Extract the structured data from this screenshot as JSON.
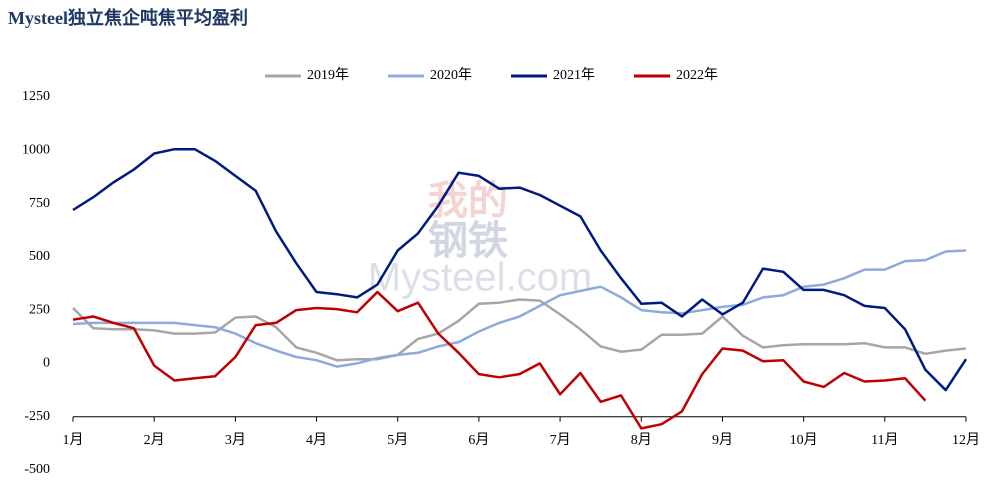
{
  "chart_data": {
    "type": "line",
    "title": "Mysteel独立焦企吨焦平均盈利",
    "watermark": [
      "我的",
      "钢铁",
      "Mysteel.com"
    ],
    "x": [
      1,
      1.25,
      1.5,
      1.75,
      2,
      2.25,
      2.5,
      2.75,
      3,
      3.25,
      3.5,
      3.75,
      4,
      4.25,
      4.5,
      4.75,
      5,
      5.25,
      5.5,
      5.75,
      6,
      6.25,
      6.5,
      6.75,
      7,
      7.25,
      7.5,
      7.75,
      8,
      8.25,
      8.5,
      8.75,
      9,
      9.25,
      9.5,
      9.75,
      10,
      10.25,
      10.5,
      10.75,
      11,
      11.25,
      11.5,
      11.75,
      12
    ],
    "series": [
      {
        "name": "2019年",
        "color": "#a6a6a6",
        "values": [
          260,
          165,
          160,
          160,
          155,
          140,
          140,
          145,
          215,
          220,
          170,
          75,
          50,
          15,
          20,
          20,
          40,
          115,
          140,
          200,
          280,
          285,
          300,
          295,
          230,
          160,
          80,
          55,
          65,
          135,
          135,
          140,
          220,
          130,
          75,
          85,
          90,
          90,
          90,
          95,
          75,
          75,
          45,
          60,
          70
        ]
      },
      {
        "name": "2020年",
        "color": "#8eaadb",
        "values": [
          185,
          190,
          190,
          190,
          190,
          190,
          180,
          170,
          140,
          95,
          60,
          30,
          15,
          -15,
          0,
          25,
          40,
          50,
          80,
          100,
          150,
          190,
          220,
          270,
          320,
          340,
          360,
          310,
          250,
          240,
          235,
          250,
          265,
          275,
          310,
          320,
          360,
          370,
          400,
          440,
          440,
          480,
          485,
          525,
          530
        ]
      },
      {
        "name": "2021年",
        "color": "#001a80",
        "values": [
          720,
          780,
          850,
          910,
          985,
          1005,
          1005,
          950,
          880,
          810,
          620,
          470,
          335,
          325,
          310,
          370,
          530,
          610,
          740,
          895,
          880,
          820,
          825,
          790,
          740,
          690,
          530,
          400,
          280,
          285,
          220,
          300,
          230,
          285,
          445,
          430,
          345,
          345,
          320,
          270,
          260,
          160,
          -30,
          -125,
          20
        ]
      },
      {
        "name": "2022年",
        "color": "#c00000",
        "values": [
          205,
          220,
          190,
          165,
          -10,
          -80,
          -70,
          -60,
          30,
          180,
          190,
          250,
          260,
          255,
          240,
          335,
          245,
          285,
          140,
          50,
          -50,
          -65,
          -50,
          0,
          -145,
          -45,
          -180,
          -150,
          -305,
          -285,
          -225,
          -50,
          70,
          60,
          10,
          15,
          -85,
          -110,
          -45,
          -85,
          -80,
          -70,
          -175,
          null,
          null
        ]
      }
    ],
    "ylim": [
      -500,
      1250
    ],
    "yticks": [
      -500,
      -250,
      0,
      250,
      500,
      750,
      1000,
      1250
    ],
    "xlim": [
      1,
      12
    ],
    "xticks": [
      {
        "value": 1,
        "label": "1月"
      },
      {
        "value": 2,
        "label": "2月"
      },
      {
        "value": 3,
        "label": "3月"
      },
      {
        "value": 4,
        "label": "4月"
      },
      {
        "value": 5,
        "label": "5月"
      },
      {
        "value": 6,
        "label": "6月"
      },
      {
        "value": 7,
        "label": "7月"
      },
      {
        "value": 8,
        "label": "8月"
      },
      {
        "value": 9,
        "label": "9月"
      },
      {
        "value": 10,
        "label": "10月"
      },
      {
        "value": 11,
        "label": "11月"
      },
      {
        "value": 12,
        "label": "12月"
      }
    ],
    "xaxis_crossing": -250,
    "grid": false,
    "legend": "top"
  }
}
